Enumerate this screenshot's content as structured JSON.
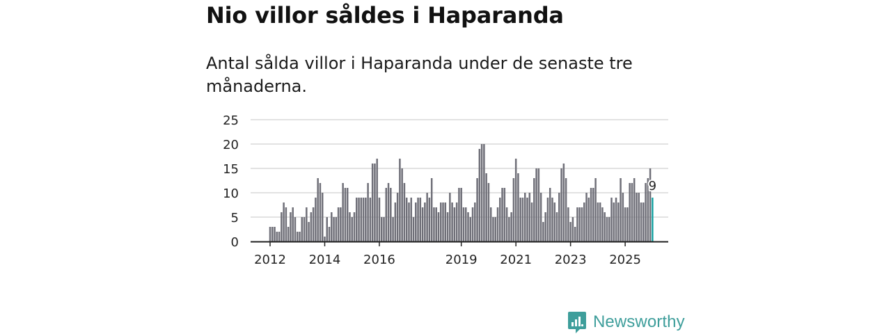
{
  "header": {
    "title": "Nio villor såldes i Haparanda",
    "subtitle": "Antal sålda villor i Haparanda under de senaste tre månaderna."
  },
  "colors": {
    "bar": "#6f6f78",
    "highlight": "#18a3a3",
    "grid": "#d9d9d9",
    "axis": "#222222",
    "brand": "#3e9e9b"
  },
  "chart_data": {
    "type": "bar",
    "title": "",
    "xlabel": "",
    "ylabel": "",
    "ylim": [
      0,
      25
    ],
    "yticks": [
      0,
      5,
      10,
      15,
      20,
      25
    ],
    "xtick_labels": [
      {
        "label": "2012",
        "index": 0
      },
      {
        "label": "2014",
        "index": 24
      },
      {
        "label": "2016",
        "index": 48
      },
      {
        "label": "2019",
        "index": 84
      },
      {
        "label": "2021",
        "index": 108
      },
      {
        "label": "2023",
        "index": 132
      },
      {
        "label": "2025",
        "index": 156
      }
    ],
    "start_period": "2012-01",
    "values": [
      3,
      3,
      3,
      2,
      2,
      6,
      8,
      7,
      3,
      6,
      7,
      5,
      2,
      2,
      5,
      5,
      7,
      4,
      6,
      7,
      9,
      13,
      12,
      10,
      1,
      5,
      3,
      6,
      5,
      5,
      7,
      7,
      12,
      11,
      11,
      6,
      5,
      6,
      9,
      9,
      9,
      9,
      9,
      12,
      9,
      16,
      16,
      17,
      9,
      5,
      5,
      11,
      12,
      11,
      5,
      8,
      10,
      17,
      15,
      12,
      9,
      8,
      9,
      5,
      8,
      9,
      9,
      7,
      8,
      10,
      9,
      13,
      7,
      7,
      6,
      8,
      8,
      8,
      6,
      10,
      8,
      7,
      8,
      11,
      11,
      7,
      7,
      6,
      5,
      7,
      8,
      13,
      19,
      20,
      20,
      14,
      12,
      7,
      5,
      5,
      7,
      9,
      11,
      11,
      7,
      5,
      6,
      13,
      17,
      14,
      9,
      9,
      10,
      9,
      10,
      8,
      13,
      15,
      15,
      10,
      4,
      6,
      9,
      11,
      9,
      8,
      6,
      10,
      15,
      16,
      13,
      7,
      4,
      5,
      3,
      7,
      7,
      7,
      8,
      10,
      9,
      11,
      11,
      13,
      8,
      8,
      7,
      6,
      5,
      5,
      9,
      8,
      9,
      8,
      13,
      10,
      7,
      7,
      12,
      12,
      13,
      10,
      10,
      8,
      8,
      12,
      13,
      15,
      9
    ],
    "highlight_index": 168,
    "highlight_label": "9"
  },
  "brand": {
    "name": "Newsworthy",
    "logo_icon": "newsworthy-logo-icon"
  }
}
